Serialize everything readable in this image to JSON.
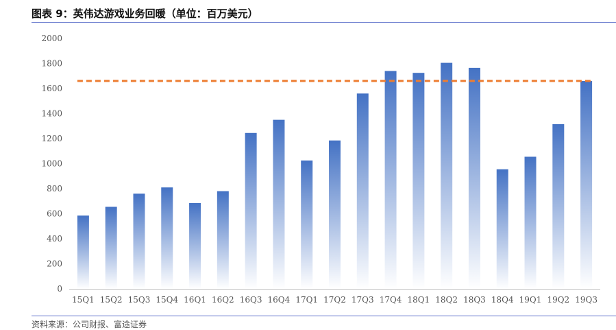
{
  "title": "图表 9：英伟达游戏业务回暖（单位：百万美元）",
  "source": "资料来源：公司财报、富途证券",
  "colors": {
    "bar_top": "#4472c4",
    "bar_bottom": "#ffffff",
    "reference_line": "#ed7d31",
    "rule": "#5b6ec9",
    "axis": "#bfbfbf"
  },
  "chart_data": {
    "type": "bar",
    "title": "",
    "xlabel": "",
    "ylabel": "",
    "ylim": [
      0,
      2000
    ],
    "yticks": [
      0,
      200,
      400,
      600,
      800,
      1000,
      1200,
      1400,
      1600,
      1800,
      2000
    ],
    "grid": false,
    "categories": [
      "15Q1",
      "15Q2",
      "15Q3",
      "15Q4",
      "16Q1",
      "16Q2",
      "16Q3",
      "16Q4",
      "17Q1",
      "17Q2",
      "17Q3",
      "17Q4",
      "18Q1",
      "18Q2",
      "18Q3",
      "18Q4",
      "19Q1",
      "19Q2",
      "19Q3"
    ],
    "values": [
      585,
      655,
      760,
      810,
      685,
      780,
      1245,
      1350,
      1025,
      1185,
      1560,
      1740,
      1725,
      1805,
      1765,
      955,
      1055,
      1315,
      1660
    ],
    "reference_line": {
      "y": 1660,
      "style": "dashed"
    }
  }
}
